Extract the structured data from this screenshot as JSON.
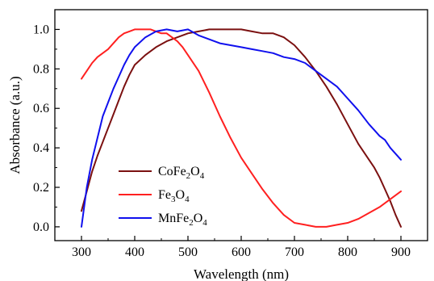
{
  "chart_data": {
    "type": "line",
    "xlabel": "Wavelength (nm)",
    "ylabel": "Absorbance (a.u.)",
    "xlim": [
      250,
      950
    ],
    "ylim": [
      -0.07,
      1.1
    ],
    "xticks": [
      300,
      400,
      500,
      600,
      700,
      800,
      900
    ],
    "yticks": [
      0.0,
      0.2,
      0.4,
      0.6,
      0.8,
      1.0
    ],
    "xtick_labels": [
      "300",
      "400",
      "500",
      "600",
      "700",
      "800",
      "900"
    ],
    "ytick_labels": [
      "0.0",
      "0.2",
      "0.4",
      "0.6",
      "0.8",
      "1.0"
    ],
    "grid": false,
    "legend_position": "bottom-left",
    "series": [
      {
        "name": "CoFe2O4",
        "name_parts": {
          "base": "CoFe",
          "sub1": "2",
          "mid": "O",
          "sub2": "4"
        },
        "color": "#7b1010",
        "x": [
          300,
          310,
          320,
          330,
          340,
          350,
          360,
          370,
          380,
          390,
          400,
          420,
          440,
          460,
          480,
          500,
          520,
          540,
          560,
          580,
          600,
          620,
          640,
          660,
          680,
          700,
          720,
          740,
          760,
          780,
          800,
          820,
          840,
          850,
          860,
          870,
          880,
          890,
          900
        ],
        "y": [
          0.08,
          0.18,
          0.28,
          0.36,
          0.43,
          0.5,
          0.57,
          0.64,
          0.71,
          0.77,
          0.82,
          0.87,
          0.91,
          0.94,
          0.96,
          0.98,
          0.99,
          1.0,
          1.0,
          1.0,
          1.0,
          0.99,
          0.98,
          0.98,
          0.96,
          0.92,
          0.86,
          0.79,
          0.71,
          0.62,
          0.52,
          0.42,
          0.34,
          0.3,
          0.25,
          0.19,
          0.13,
          0.06,
          0.0
        ]
      },
      {
        "name": "Fe3O4",
        "name_parts": {
          "base": "Fe",
          "sub1": "3",
          "mid": "O",
          "sub2": "4"
        },
        "color": "#ff2020",
        "x": [
          300,
          310,
          320,
          330,
          340,
          350,
          360,
          370,
          380,
          390,
          400,
          410,
          420,
          430,
          440,
          450,
          460,
          470,
          480,
          490,
          500,
          520,
          540,
          560,
          580,
          600,
          620,
          640,
          660,
          680,
          700,
          720,
          740,
          760,
          780,
          800,
          820,
          840,
          860,
          880,
          900
        ],
        "y": [
          0.75,
          0.79,
          0.83,
          0.86,
          0.88,
          0.9,
          0.93,
          0.96,
          0.98,
          0.99,
          1.0,
          1.0,
          1.0,
          1.0,
          0.99,
          0.98,
          0.98,
          0.96,
          0.94,
          0.91,
          0.87,
          0.79,
          0.68,
          0.56,
          0.45,
          0.35,
          0.27,
          0.19,
          0.12,
          0.06,
          0.02,
          0.01,
          0.0,
          0.0,
          0.01,
          0.02,
          0.04,
          0.07,
          0.1,
          0.14,
          0.18
        ]
      },
      {
        "name": "MnFe2O4",
        "name_parts": {
          "base": "MnFe",
          "sub1": "2",
          "mid": "O",
          "sub2": "4"
        },
        "color": "#1010ee",
        "x": [
          300,
          310,
          320,
          330,
          340,
          350,
          360,
          370,
          380,
          390,
          400,
          420,
          440,
          460,
          480,
          500,
          520,
          540,
          560,
          580,
          600,
          620,
          640,
          660,
          680,
          700,
          720,
          740,
          760,
          780,
          800,
          820,
          840,
          850,
          860,
          870,
          880,
          890,
          900
        ],
        "y": [
          0.0,
          0.2,
          0.34,
          0.45,
          0.56,
          0.63,
          0.7,
          0.76,
          0.82,
          0.87,
          0.91,
          0.96,
          0.99,
          1.0,
          0.99,
          1.0,
          0.97,
          0.95,
          0.93,
          0.92,
          0.91,
          0.9,
          0.89,
          0.88,
          0.86,
          0.85,
          0.83,
          0.79,
          0.75,
          0.71,
          0.65,
          0.59,
          0.52,
          0.49,
          0.46,
          0.44,
          0.4,
          0.37,
          0.34
        ]
      }
    ]
  }
}
